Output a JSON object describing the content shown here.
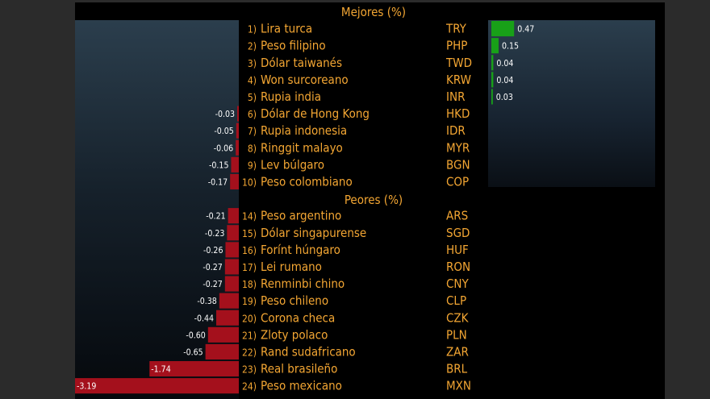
{
  "chart_data": {
    "type": "bar",
    "orientation": "horizontal",
    "sections": [
      {
        "title": "Mejores (%)",
        "rows": [
          {
            "rank": "1)",
            "name": "Lira turca",
            "code": "TRY",
            "value": 0.47
          },
          {
            "rank": "2)",
            "name": "Peso filipino",
            "code": "PHP",
            "value": 0.15
          },
          {
            "rank": "3)",
            "name": "Dólar taiwanés",
            "code": "TWD",
            "value": 0.04
          },
          {
            "rank": "4)",
            "name": "Won surcoreano",
            "code": "KRW",
            "value": 0.04
          },
          {
            "rank": "5)",
            "name": "Rupia india",
            "code": "INR",
            "value": 0.03
          },
          {
            "rank": "6)",
            "name": "Dólar de Hong Kong",
            "code": "HKD",
            "value": -0.03
          },
          {
            "rank": "7)",
            "name": "Rupia indonesia",
            "code": "IDR",
            "value": -0.05
          },
          {
            "rank": "8)",
            "name": "Ringgit malayo",
            "code": "MYR",
            "value": -0.06
          },
          {
            "rank": "9)",
            "name": "Lev búlgaro",
            "code": "BGN",
            "value": -0.15
          },
          {
            "rank": "10)",
            "name": "Peso colombiano",
            "code": "COP",
            "value": -0.17
          }
        ]
      },
      {
        "title": "Peores (%)",
        "rows": [
          {
            "rank": "14)",
            "name": "Peso argentino",
            "code": "ARS",
            "value": -0.21
          },
          {
            "rank": "15)",
            "name": "Dólar singapurense",
            "code": "SGD",
            "value": -0.23
          },
          {
            "rank": "16)",
            "name": "Forínt húngaro",
            "code": "HUF",
            "value": -0.26
          },
          {
            "rank": "17)",
            "name": "Lei rumano",
            "code": "RON",
            "value": -0.27
          },
          {
            "rank": "18)",
            "name": "Renminbi chino",
            "code": "CNY",
            "value": -0.27
          },
          {
            "rank": "19)",
            "name": "Peso chileno",
            "code": "CLP",
            "value": -0.38
          },
          {
            "rank": "20)",
            "name": "Corona checa",
            "code": "CZK",
            "value": -0.44
          },
          {
            "rank": "21)",
            "name": "Zloty polaco",
            "code": "PLN",
            "value": -0.6
          },
          {
            "rank": "22)",
            "name": "Rand sudafricano",
            "code": "ZAR",
            "value": -0.65
          },
          {
            "rank": "23)",
            "name": "Real brasileño",
            "code": "BRL",
            "value": -1.74
          },
          {
            "rank": "24)",
            "name": "Peso mexicano",
            "code": "MXN",
            "value": -3.19
          }
        ]
      }
    ],
    "colors": {
      "positive": "#18a018",
      "negative": "#a4101c",
      "text": "#f3a633",
      "value_label": "#ffffff"
    }
  }
}
